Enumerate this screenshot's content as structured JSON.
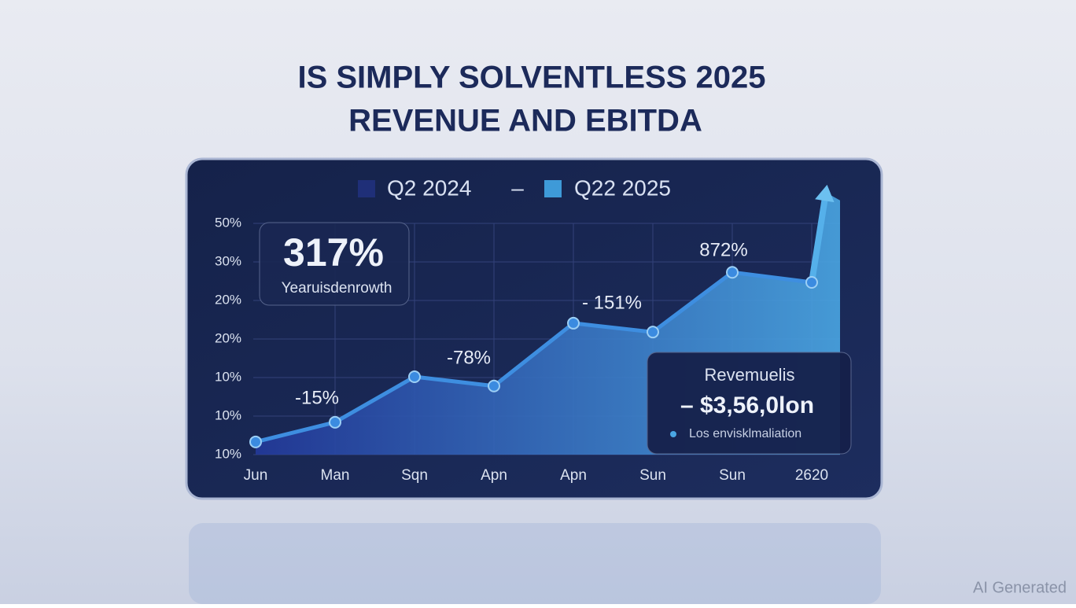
{
  "chart_data": {
    "type": "area",
    "title": [
      "IS SIMPLY SOLVENTLESS 2025",
      "REVENUE AND EBITDA"
    ],
    "legend": [
      {
        "name": "Q2 2024",
        "color": "#1f2f78"
      },
      {
        "name": "Q22 2025",
        "color": "#3e9ad8"
      }
    ],
    "legend_separator": "–",
    "categories": [
      "Jun",
      "Man",
      "Sqn",
      "Apn",
      "Apn",
      "Sun",
      "Sun",
      "2620"
    ],
    "values": [
      0.33,
      0.84,
      2.02,
      1.78,
      3.41,
      3.18,
      4.73,
      4.47
    ],
    "arrow_end": 6.8,
    "color": "#3e8ee0",
    "ylim": [
      0,
      7
    ],
    "yticks": [
      {
        "value": 0,
        "label": "10%"
      },
      {
        "value": 1,
        "label": "10%"
      },
      {
        "value": 2,
        "label": "10%"
      },
      {
        "value": 3,
        "label": "20%"
      },
      {
        "value": 4,
        "label": "20%"
      },
      {
        "value": 5,
        "label": "30%"
      },
      {
        "value": 6,
        "label": "50%"
      }
    ],
    "grid": true,
    "annotations": [
      "-15%",
      "-78%",
      "- 151%",
      "872%"
    ],
    "callout_growth": {
      "value": "317%",
      "label": "Yearuisdenrowth"
    },
    "callout_revenue": {
      "title": "Revemuelis",
      "value": "– $3,56,0lon",
      "note": "Los envisklmaliation"
    },
    "watermark": "AI Generated"
  }
}
